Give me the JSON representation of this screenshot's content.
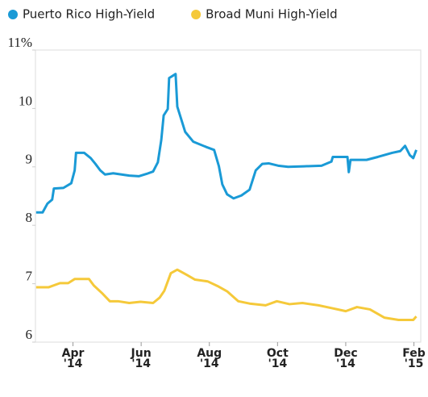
{
  "chart_data": {
    "type": "line",
    "legend": "top",
    "xlim": [
      1.9,
      13.2
    ],
    "xticks": [
      {
        "value": 3,
        "label": "Apr\n'14"
      },
      {
        "value": 5,
        "label": "Jun\n'14"
      },
      {
        "value": 7,
        "label": "Aug\n'14"
      },
      {
        "value": 9,
        "label": "Oct\n'14"
      },
      {
        "value": 11,
        "label": "Dec\n'14"
      },
      {
        "value": 13,
        "label": "Feb\n'15"
      }
    ],
    "ylim": [
      6,
      11
    ],
    "yticks": [
      6,
      7,
      8,
      9,
      10,
      {
        "value": 11,
        "label": "11%"
      }
    ],
    "series": [
      {
        "name": "Puerto Rico High-Yield",
        "color": "#1a9ad6",
        "x": [
          1.92,
          2.11,
          2.25,
          2.39,
          2.44,
          2.72,
          2.95,
          3.05,
          3.09,
          3.33,
          3.52,
          3.66,
          3.8,
          3.94,
          4.18,
          4.65,
          4.93,
          5.16,
          5.35,
          5.49,
          5.59,
          5.66,
          5.78,
          5.82,
          6.01,
          6.06,
          6.29,
          6.53,
          6.91,
          7.14,
          7.28,
          7.38,
          7.52,
          7.71,
          7.94,
          8.18,
          8.36,
          8.55,
          8.74,
          9.02,
          9.31,
          9.78,
          10.29,
          10.58,
          10.62,
          11.05,
          11.09,
          11.14,
          11.61,
          11.94,
          12.36,
          12.6,
          12.74,
          12.88,
          12.98,
          13.07
        ],
        "values": [
          8.22,
          8.22,
          8.37,
          8.44,
          8.63,
          8.64,
          8.72,
          8.94,
          9.24,
          9.24,
          9.15,
          9.05,
          8.94,
          8.87,
          8.89,
          8.85,
          8.84,
          8.88,
          8.92,
          9.08,
          9.46,
          9.88,
          9.99,
          10.52,
          10.59,
          10.03,
          9.6,
          9.43,
          9.34,
          9.29,
          9.01,
          8.7,
          8.53,
          8.46,
          8.51,
          8.61,
          8.94,
          9.05,
          9.06,
          9.02,
          9.0,
          9.01,
          9.02,
          9.09,
          9.17,
          9.17,
          8.91,
          9.12,
          9.12,
          9.17,
          9.24,
          9.27,
          9.36,
          9.2,
          9.15,
          9.29
        ]
      },
      {
        "name": "Broad Muni High-Yield",
        "color": "#f5c93a",
        "x": [
          1.92,
          2.29,
          2.62,
          2.86,
          3.05,
          3.47,
          3.61,
          3.85,
          4.08,
          4.32,
          4.65,
          4.98,
          5.35,
          5.54,
          5.68,
          5.87,
          6.06,
          6.34,
          6.58,
          6.95,
          7.24,
          7.52,
          7.85,
          8.18,
          8.65,
          8.98,
          9.35,
          9.73,
          10.2,
          10.53,
          11.0,
          11.33,
          11.71,
          12.13,
          12.55,
          12.98,
          13.07
        ],
        "values": [
          6.94,
          6.94,
          7.01,
          7.01,
          7.08,
          7.08,
          6.97,
          6.84,
          6.7,
          6.7,
          6.67,
          6.69,
          6.67,
          6.76,
          6.88,
          7.18,
          7.24,
          7.15,
          7.07,
          7.04,
          6.96,
          6.87,
          6.7,
          6.66,
          6.63,
          6.7,
          6.65,
          6.67,
          6.63,
          6.59,
          6.53,
          6.6,
          6.56,
          6.42,
          6.38,
          6.38,
          6.44
        ]
      }
    ]
  }
}
